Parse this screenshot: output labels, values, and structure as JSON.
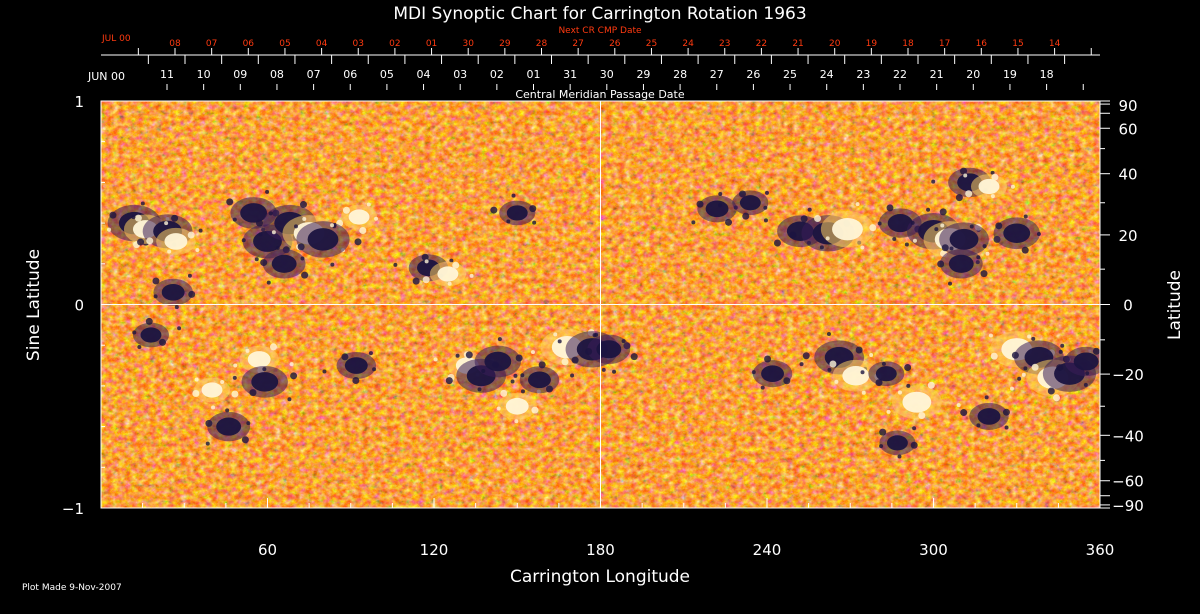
{
  "chart_data": {
    "type": "heatmap",
    "title": "MDI Synoptic Chart for Carrington Rotation 1963",
    "xlabel": "Carrington Longitude",
    "ylabel_left": "Sine Latitude",
    "ylabel_right": "Latitude",
    "xlim": [
      0,
      360
    ],
    "ylim": [
      -1,
      1
    ],
    "x_ticks": [
      60,
      120,
      180,
      240,
      300,
      360
    ],
    "y_ticks_left": [
      {
        "value": 1,
        "label": "1"
      },
      {
        "value": 0,
        "label": "0"
      },
      {
        "value": -1,
        "label": "−1"
      }
    ],
    "y_ticks_right": [
      90,
      60,
      40,
      20,
      0,
      -20,
      -40,
      -60,
      -90
    ],
    "y_ticks_right_labels": [
      "90",
      "60",
      "40",
      "20",
      "0",
      "−20",
      "−40",
      "−60",
      "−90"
    ],
    "central_meridian_label": "Central Meridian Passage Date",
    "next_cmp_label": "Next CR CMP Date",
    "top_dates_red": {
      "month_label": "JUL 00",
      "days": [
        "08",
        "07",
        "06",
        "05",
        "04",
        "03",
        "02",
        "01",
        "30",
        "29",
        "28",
        "27",
        "26",
        "25",
        "24",
        "23",
        "22",
        "21",
        "20",
        "19",
        "18",
        "17",
        "16",
        "15",
        "14"
      ]
    },
    "top_dates_white": {
      "month_label": "JUN 00",
      "days": [
        "11",
        "10",
        "09",
        "08",
        "07",
        "06",
        "05",
        "04",
        "03",
        "02",
        "01",
        "31",
        "30",
        "29",
        "28",
        "27",
        "26",
        "25",
        "24",
        "23",
        "22",
        "21",
        "20",
        "19",
        "18"
      ]
    },
    "grid_lines": {
      "longitude": 180,
      "sine_latitude": 0
    },
    "colormap": [
      "#1a1550",
      "#3a1a10",
      "#b82200",
      "#e84a10",
      "#ff7a20",
      "#ffd060",
      "#ffffff"
    ],
    "colors": {
      "background": "#000000",
      "text": "#ffffff",
      "red_text": "#ff3a10",
      "grid": "#ffffff"
    },
    "magnetic_regions": [
      {
        "lon": 12,
        "sinlat": 0.4,
        "polarity": "negative",
        "strength": 1.0
      },
      {
        "lon": 16,
        "sinlat": 0.37,
        "polarity": "positive",
        "strength": 0.7
      },
      {
        "lon": 24,
        "sinlat": 0.36,
        "polarity": "negative",
        "strength": 0.9
      },
      {
        "lon": 27,
        "sinlat": 0.31,
        "polarity": "positive",
        "strength": 0.6
      },
      {
        "lon": 55,
        "sinlat": 0.45,
        "polarity": "negative",
        "strength": 0.8
      },
      {
        "lon": 60,
        "sinlat": 0.31,
        "polarity": "negative",
        "strength": 0.9
      },
      {
        "lon": 68,
        "sinlat": 0.4,
        "polarity": "negative",
        "strength": 1.0
      },
      {
        "lon": 75,
        "sinlat": 0.35,
        "polarity": "positive",
        "strength": 1.0
      },
      {
        "lon": 80,
        "sinlat": 0.32,
        "polarity": "negative",
        "strength": 1.0
      },
      {
        "lon": 66,
        "sinlat": 0.2,
        "polarity": "negative",
        "strength": 0.7
      },
      {
        "lon": 93,
        "sinlat": 0.43,
        "polarity": "positive",
        "strength": 0.5
      },
      {
        "lon": 118,
        "sinlat": 0.18,
        "polarity": "negative",
        "strength": 0.6
      },
      {
        "lon": 125,
        "sinlat": 0.15,
        "polarity": "positive",
        "strength": 0.5
      },
      {
        "lon": 150,
        "sinlat": 0.45,
        "polarity": "negative",
        "strength": 0.5
      },
      {
        "lon": 26,
        "sinlat": 0.06,
        "polarity": "negative",
        "strength": 0.6
      },
      {
        "lon": 18,
        "sinlat": -0.15,
        "polarity": "negative",
        "strength": 0.5
      },
      {
        "lon": 57,
        "sinlat": -0.27,
        "polarity": "positive",
        "strength": 0.6
      },
      {
        "lon": 59,
        "sinlat": -0.38,
        "polarity": "negative",
        "strength": 0.8
      },
      {
        "lon": 40,
        "sinlat": -0.42,
        "polarity": "positive",
        "strength": 0.5
      },
      {
        "lon": 46,
        "sinlat": -0.6,
        "polarity": "negative",
        "strength": 0.7
      },
      {
        "lon": 92,
        "sinlat": -0.3,
        "polarity": "negative",
        "strength": 0.6
      },
      {
        "lon": 132,
        "sinlat": -0.3,
        "polarity": "positive",
        "strength": 0.6
      },
      {
        "lon": 137,
        "sinlat": -0.35,
        "polarity": "negative",
        "strength": 0.9
      },
      {
        "lon": 143,
        "sinlat": -0.28,
        "polarity": "negative",
        "strength": 0.8
      },
      {
        "lon": 150,
        "sinlat": -0.5,
        "polarity": "positive",
        "strength": 0.6
      },
      {
        "lon": 158,
        "sinlat": -0.37,
        "polarity": "negative",
        "strength": 0.6
      },
      {
        "lon": 168,
        "sinlat": -0.21,
        "polarity": "positive",
        "strength": 1.0
      },
      {
        "lon": 177,
        "sinlat": -0.22,
        "polarity": "negative",
        "strength": 1.0
      },
      {
        "lon": 183,
        "sinlat": -0.22,
        "polarity": "negative",
        "strength": 0.7
      },
      {
        "lon": 222,
        "sinlat": 0.47,
        "polarity": "negative",
        "strength": 0.6
      },
      {
        "lon": 234,
        "sinlat": 0.5,
        "polarity": "negative",
        "strength": 0.5
      },
      {
        "lon": 252,
        "sinlat": 0.36,
        "polarity": "negative",
        "strength": 0.8
      },
      {
        "lon": 262,
        "sinlat": 0.35,
        "polarity": "negative",
        "strength": 1.0
      },
      {
        "lon": 269,
        "sinlat": 0.37,
        "polarity": "positive",
        "strength": 1.0
      },
      {
        "lon": 288,
        "sinlat": 0.4,
        "polarity": "negative",
        "strength": 0.7
      },
      {
        "lon": 300,
        "sinlat": 0.36,
        "polarity": "negative",
        "strength": 1.0
      },
      {
        "lon": 306,
        "sinlat": 0.32,
        "polarity": "positive",
        "strength": 1.0
      },
      {
        "lon": 311,
        "sinlat": 0.32,
        "polarity": "negative",
        "strength": 0.9
      },
      {
        "lon": 310,
        "sinlat": 0.2,
        "polarity": "negative",
        "strength": 0.7
      },
      {
        "lon": 330,
        "sinlat": 0.35,
        "polarity": "negative",
        "strength": 0.8
      },
      {
        "lon": 313,
        "sinlat": 0.6,
        "polarity": "negative",
        "strength": 0.7
      },
      {
        "lon": 320,
        "sinlat": 0.58,
        "polarity": "positive",
        "strength": 0.5
      },
      {
        "lon": 266,
        "sinlat": -0.26,
        "polarity": "negative",
        "strength": 0.9
      },
      {
        "lon": 272,
        "sinlat": -0.35,
        "polarity": "positive",
        "strength": 0.8
      },
      {
        "lon": 242,
        "sinlat": -0.34,
        "polarity": "negative",
        "strength": 0.6
      },
      {
        "lon": 294,
        "sinlat": -0.48,
        "polarity": "positive",
        "strength": 0.9
      },
      {
        "lon": 283,
        "sinlat": -0.34,
        "polarity": "negative",
        "strength": 0.5
      },
      {
        "lon": 330,
        "sinlat": -0.22,
        "polarity": "positive",
        "strength": 1.0
      },
      {
        "lon": 338,
        "sinlat": -0.26,
        "polarity": "negative",
        "strength": 0.9
      },
      {
        "lon": 343,
        "sinlat": -0.36,
        "polarity": "positive",
        "strength": 1.0
      },
      {
        "lon": 349,
        "sinlat": -0.34,
        "polarity": "negative",
        "strength": 1.0
      },
      {
        "lon": 355,
        "sinlat": -0.28,
        "polarity": "negative",
        "strength": 0.7
      },
      {
        "lon": 320,
        "sinlat": -0.55,
        "polarity": "negative",
        "strength": 0.6
      },
      {
        "lon": 287,
        "sinlat": -0.68,
        "polarity": "negative",
        "strength": 0.5
      }
    ]
  },
  "footer": {
    "plot_made": "Plot Made  9-Nov-2007"
  }
}
